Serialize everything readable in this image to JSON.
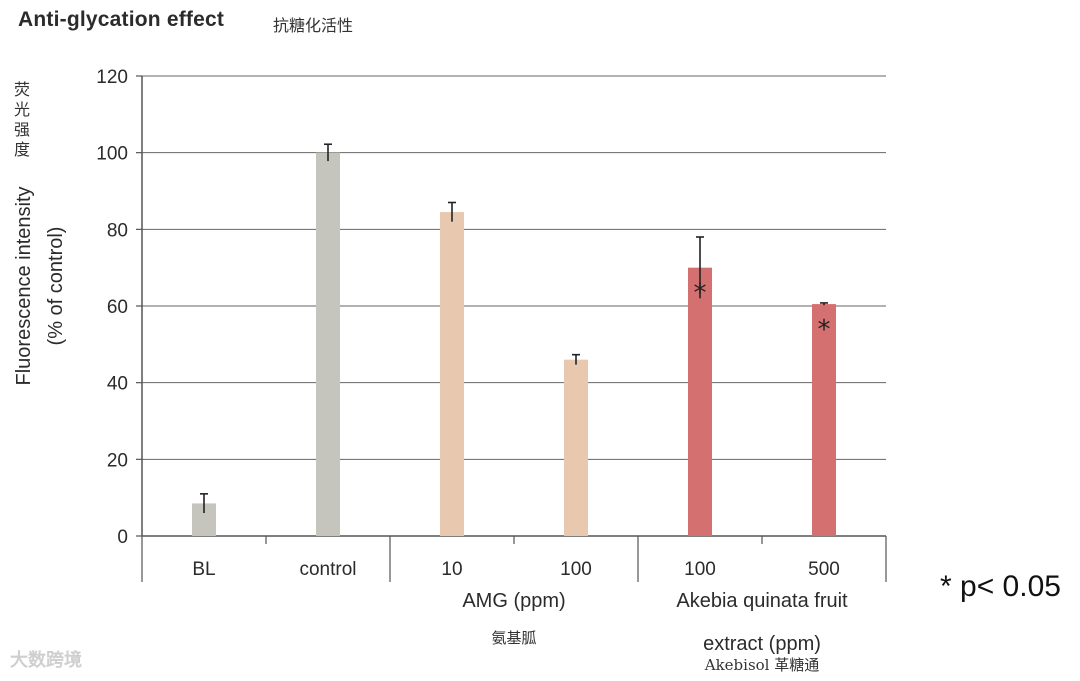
{
  "title": "Anti-glycation effect",
  "title_zh": "抗糖化活性",
  "ylabel_zh": "荧光强度",
  "significance_note": "* p< 0.05",
  "watermark": "大数跨境",
  "chart_data": {
    "type": "bar",
    "ylabel": [
      "Fluorescence intensity",
      "(% of control)"
    ],
    "ylim": [
      0,
      120
    ],
    "yticks": [
      0,
      20,
      40,
      60,
      80,
      100,
      120
    ],
    "grid": true,
    "categories": [
      "BL",
      "control",
      "10",
      "100",
      "100",
      "500"
    ],
    "values": [
      8.5,
      100,
      84.5,
      46,
      70,
      60.5
    ],
    "errors": [
      2.5,
      2.2,
      2.5,
      1.3,
      8,
      0.3
    ],
    "colors": [
      "#c5c5bd",
      "#c5c5bd",
      "#e8c8ae",
      "#e8c8ae",
      "#d4706f",
      "#d4706f"
    ],
    "significant": [
      false,
      false,
      false,
      false,
      true,
      true
    ],
    "groups": [
      {
        "label": "",
        "sublabel": "",
        "start": 0,
        "end": 1
      },
      {
        "label": "AMG (ppm)",
        "sublabel": "氨基胍",
        "start": 2,
        "end": 3
      },
      {
        "label": "Akebia quinata fruit",
        "label2": "extract (ppm)",
        "sublabel": "Akebisol 革糖通",
        "start": 4,
        "end": 5
      }
    ]
  }
}
